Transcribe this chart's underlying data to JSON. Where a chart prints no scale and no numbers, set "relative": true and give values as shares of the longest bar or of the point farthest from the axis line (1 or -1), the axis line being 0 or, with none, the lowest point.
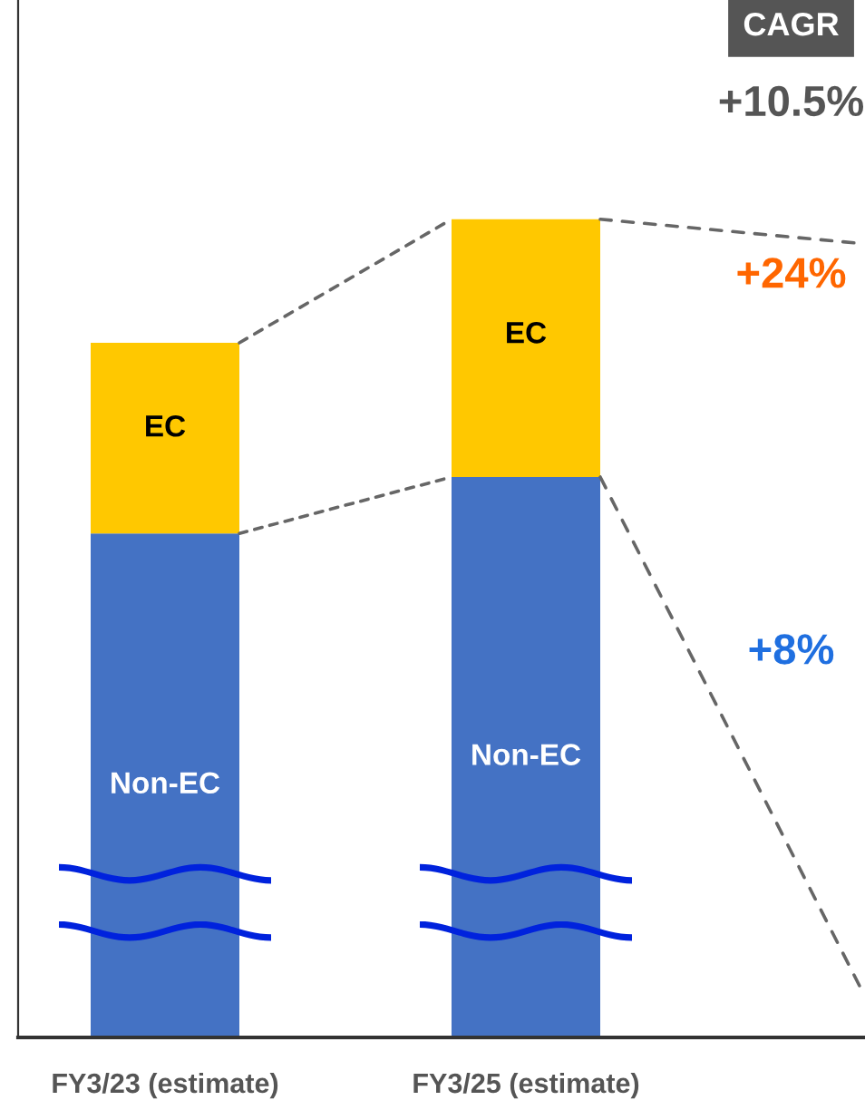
{
  "chart_data": {
    "type": "bar",
    "stacked": true,
    "relative": true,
    "legend": false,
    "grid": false,
    "categories": [
      "FY3/23 (estimate)",
      "FY3/25 (estimate)"
    ],
    "series": [
      {
        "name": "Non-EC",
        "color": "#4472c4",
        "values": [
          0.616,
          0.685
        ]
      },
      {
        "name": "EC",
        "color": "#ffc800",
        "values": [
          0.233,
          0.315
        ]
      }
    ],
    "annotations": [
      "CAGR",
      "+10.5%",
      "+24%",
      "+8%"
    ]
  }
}
